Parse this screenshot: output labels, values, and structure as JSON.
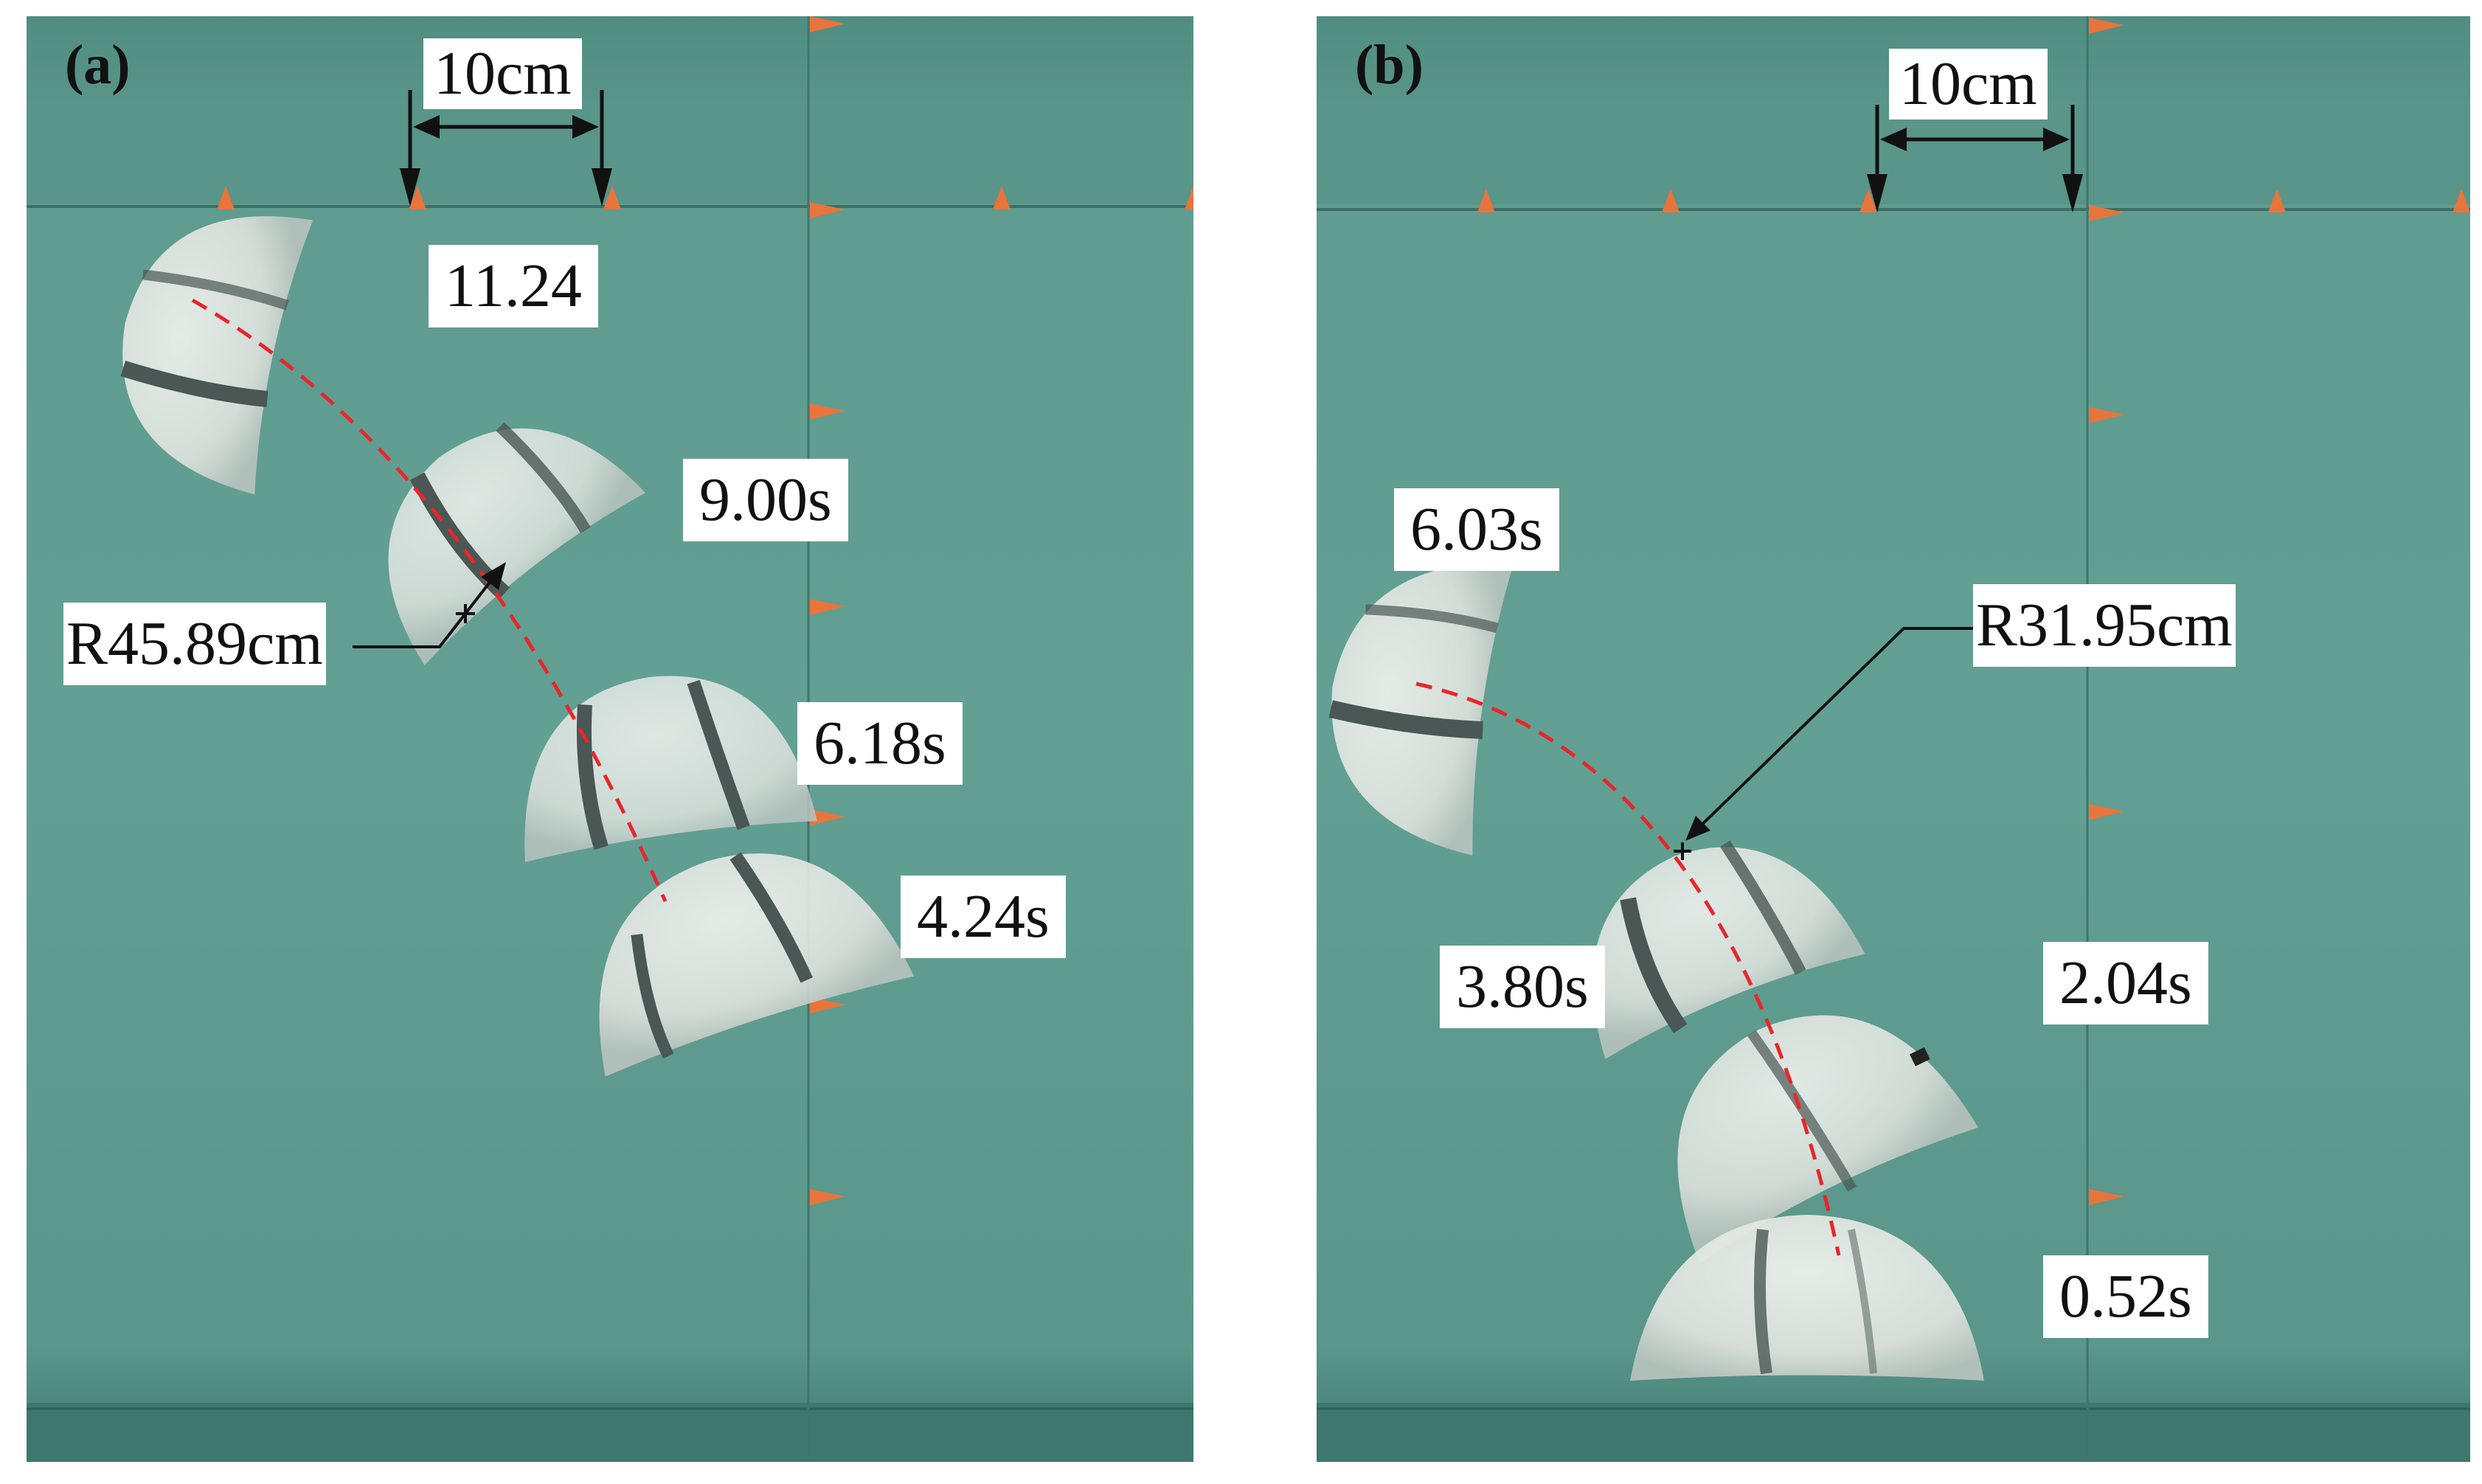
{
  "colors": {
    "water": "#5f9a8e",
    "water_light": "#6aa598",
    "marker": "#e8743b",
    "trajectory": "#e8262b",
    "robot": "#e4e7e3",
    "robot_band": "#4a5754",
    "label_bg": "#ffffff"
  },
  "panels": [
    {
      "id": "a",
      "label": "(a)",
      "scale": "10cm",
      "radius": "R45.89cm",
      "times": [
        "11.24",
        "9.00s",
        "6.18s",
        "4.24s"
      ]
    },
    {
      "id": "b",
      "label": "(b)",
      "scale": "10cm",
      "radius": "R31.95cm",
      "times": [
        "6.03s",
        "3.80s",
        "2.04s",
        "0.52s"
      ]
    }
  ]
}
